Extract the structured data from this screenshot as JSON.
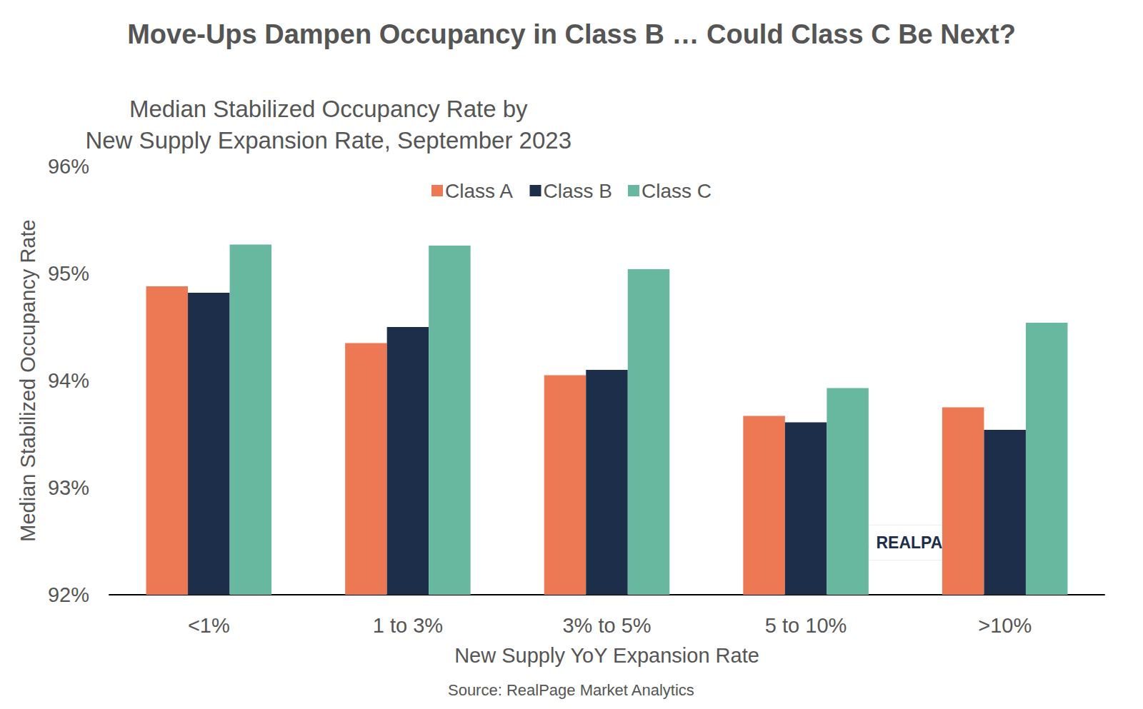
{
  "chart_data": {
    "type": "bar",
    "title": "Move-Ups Dampen Occupancy in Class B … Could Class C Be Next?",
    "subtitle": "Median Stabilized Occupancy Rate by\nNew Supply Expansion Rate, September 2023",
    "x_label": "New Supply YoY Expansion Rate",
    "y_label": "Median Stabilized Occupancy Rate",
    "source": "Source: RealPage Market Analytics",
    "logo_text": "REALPAGE",
    "categories": [
      "<1%",
      "1 to 3%",
      "3% to 5%",
      "5 to 10%",
      ">10%"
    ],
    "series": [
      {
        "name": "Class A",
        "color": "#EC7854",
        "values": [
          94.88,
          94.35,
          94.05,
          93.67,
          93.75
        ]
      },
      {
        "name": "Class B",
        "color": "#1C2E4A",
        "values": [
          94.82,
          94.5,
          94.1,
          93.61,
          93.54
        ]
      },
      {
        "name": "Class C",
        "color": "#68B8A0",
        "values": [
          95.27,
          95.26,
          95.04,
          93.93,
          94.54
        ]
      }
    ],
    "ylim": [
      92,
      96
    ],
    "yticks": [
      {
        "value": 92,
        "label": "92%"
      },
      {
        "value": 93,
        "label": "93%"
      },
      {
        "value": 94,
        "label": "94%"
      },
      {
        "value": 95,
        "label": "95%"
      },
      {
        "value": 96,
        "label": "96%"
      }
    ],
    "grid": false,
    "legend": "top"
  }
}
